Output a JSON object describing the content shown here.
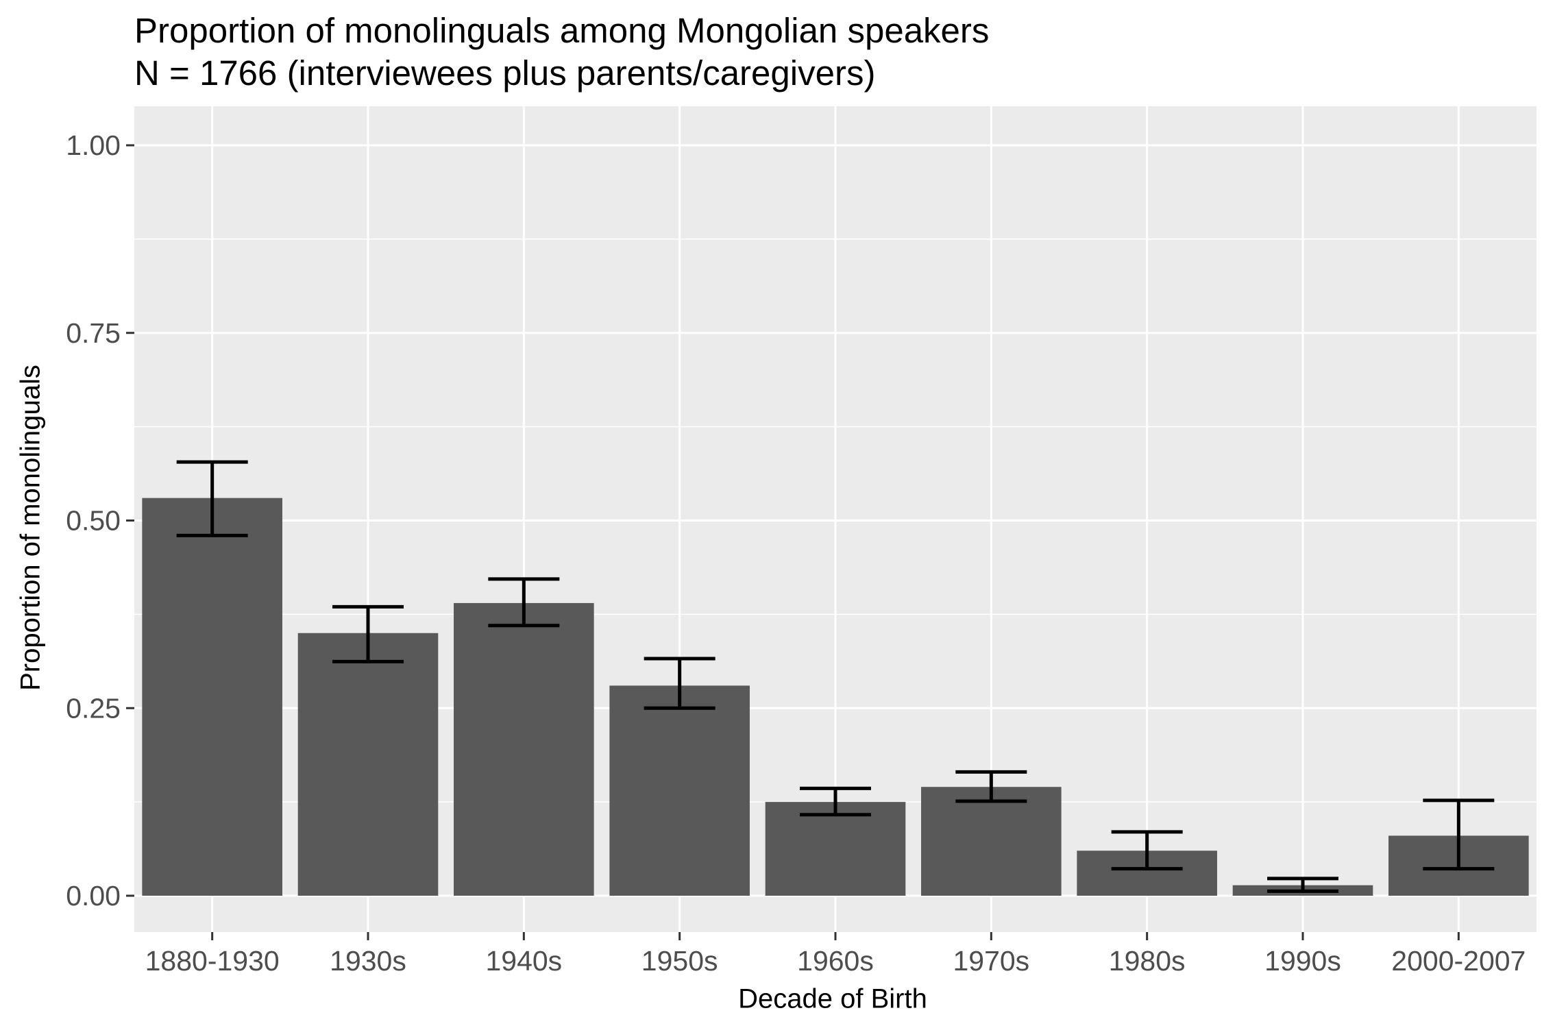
{
  "chart_data": {
    "type": "bar",
    "title": "Proportion of monolinguals among Mongolian speakers",
    "subtitle": "N = 1766 (interviewees plus parents/caregivers)",
    "xlabel": "Decade of Birth",
    "ylabel": "Proportion of monolinguals",
    "categories": [
      "1880-1930",
      "1930s",
      "1940s",
      "1950s",
      "1960s",
      "1970s",
      "1980s",
      "1990s",
      "2000-2007"
    ],
    "values": [
      0.53,
      0.35,
      0.39,
      0.28,
      0.125,
      0.145,
      0.06,
      0.014,
      0.08
    ],
    "error_low": [
      0.48,
      0.312,
      0.36,
      0.25,
      0.108,
      0.126,
      0.036,
      0.006,
      0.036
    ],
    "error_high": [
      0.578,
      0.385,
      0.422,
      0.316,
      0.143,
      0.165,
      0.085,
      0.023,
      0.127
    ],
    "ylim": [
      -0.05,
      1.05
    ],
    "yticks": [
      0,
      0.25,
      0.5,
      0.75,
      1
    ],
    "ytick_labels": [
      "0.00",
      "0.25",
      "0.50",
      "0.75",
      "1.00"
    ],
    "grid": true,
    "colors": {
      "bar": "#595959",
      "panel": "#ebebeb",
      "grid": "#ffffff",
      "error": "#000000",
      "tick_text": "#4d4d4d"
    }
  }
}
